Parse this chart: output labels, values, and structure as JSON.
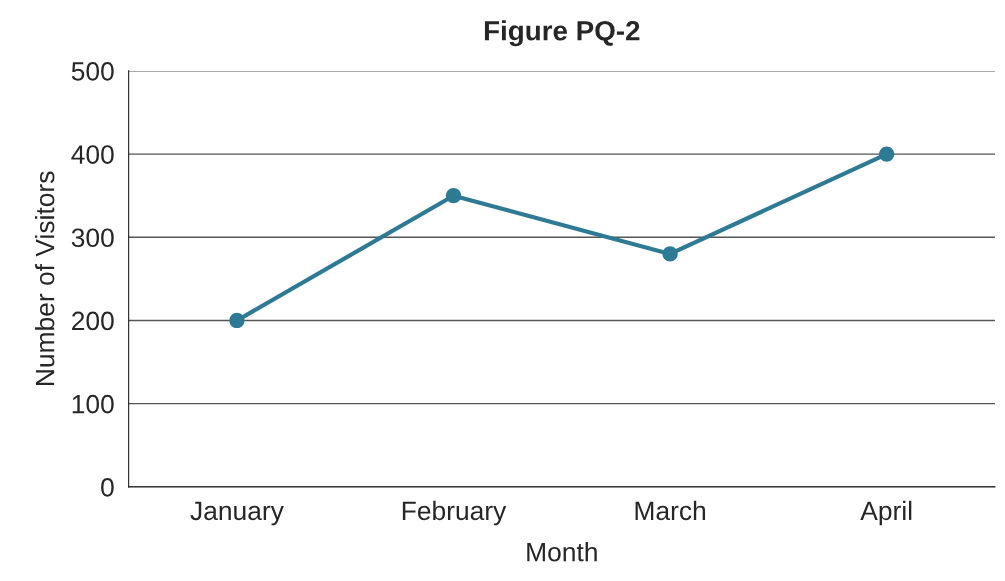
{
  "chart_data": {
    "type": "line",
    "title": "Figure PQ-2",
    "xlabel": "Month",
    "ylabel": "Number of Visitors",
    "categories": [
      "January",
      "February",
      "March",
      "April"
    ],
    "series": [
      {
        "color": "#2e7a94",
        "values": [
          200,
          350,
          280,
          400
        ]
      }
    ],
    "ylim": [
      0,
      500
    ],
    "yticks": [
      0,
      100,
      200,
      300,
      400,
      500
    ],
    "grid": "y",
    "marker": "circle",
    "legend": false
  }
}
